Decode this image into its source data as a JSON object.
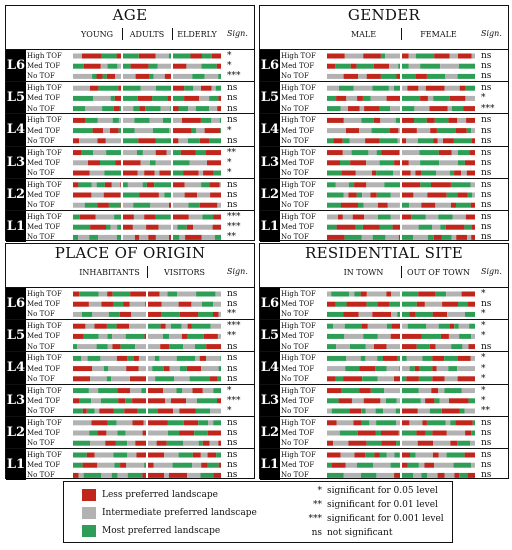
{
  "colors": {
    "less": "#c0261b",
    "intermediate": "#b2b2b2",
    "most": "#2e9e57"
  },
  "levels": [
    "L6",
    "L5",
    "L4",
    "L3",
    "L2",
    "L1"
  ],
  "rows": [
    "High TOF",
    "Med TOF",
    "No TOF"
  ],
  "sign_header": "Sign.",
  "chart_data": [
    {
      "type": "bar",
      "title": "AGE",
      "groups": [
        "YOUNG",
        "ADULTS",
        "ELDERLY"
      ],
      "significance": [
        [
          "*",
          "*",
          "***"
        ],
        [
          "ns",
          "ns",
          "ns"
        ],
        [
          "ns",
          "*",
          "ns"
        ],
        [
          "**",
          "*",
          "*"
        ],
        [
          "ns",
          "ns",
          "ns"
        ],
        [
          "***",
          "***",
          "**"
        ]
      ]
    },
    {
      "type": "bar",
      "title": "GENDER",
      "groups": [
        "MALE",
        "FEMALE"
      ],
      "significance": [
        [
          "ns",
          "ns",
          "ns"
        ],
        [
          "ns",
          "*",
          "***"
        ],
        [
          "ns",
          "ns",
          "ns"
        ],
        [
          "ns",
          "ns",
          "ns"
        ],
        [
          "ns",
          "ns",
          "ns"
        ],
        [
          "ns",
          "ns",
          "ns"
        ]
      ]
    },
    {
      "type": "bar",
      "title": "PLACE OF ORIGIN",
      "groups": [
        "INHABITANTS",
        "VISITORS"
      ],
      "significance": [
        [
          "ns",
          "ns",
          "**"
        ],
        [
          "***",
          "**",
          "ns"
        ],
        [
          "ns",
          "ns",
          "ns"
        ],
        [
          "*",
          "***",
          "*"
        ],
        [
          "ns",
          "ns",
          "ns"
        ],
        [
          "ns",
          "ns",
          "ns"
        ]
      ]
    },
    {
      "type": "bar",
      "title": "RESIDENTIAL SITE",
      "groups": [
        "IN TOWN",
        "OUT OF TOWN"
      ],
      "significance": [
        [
          "*",
          "ns",
          "*"
        ],
        [
          "*",
          "*",
          "ns"
        ],
        [
          "*",
          "*",
          "*"
        ],
        [
          "*",
          "*",
          "**"
        ],
        [
          "ns",
          "ns",
          "ns"
        ],
        [
          "ns",
          "ns",
          "ns"
        ]
      ]
    }
  ],
  "legend": {
    "less": "Less preferred landscape",
    "intermediate": "Intermediate preferred landscape",
    "most": "Most preferred landscape",
    "sig": [
      {
        "key": "*",
        "text": "significant for 0.05 level"
      },
      {
        "key": "**",
        "text": "significant for 0.01 level"
      },
      {
        "key": "***",
        "text": "significant for 0.001 level"
      },
      {
        "key": "ns",
        "text": "not significant"
      }
    ]
  }
}
